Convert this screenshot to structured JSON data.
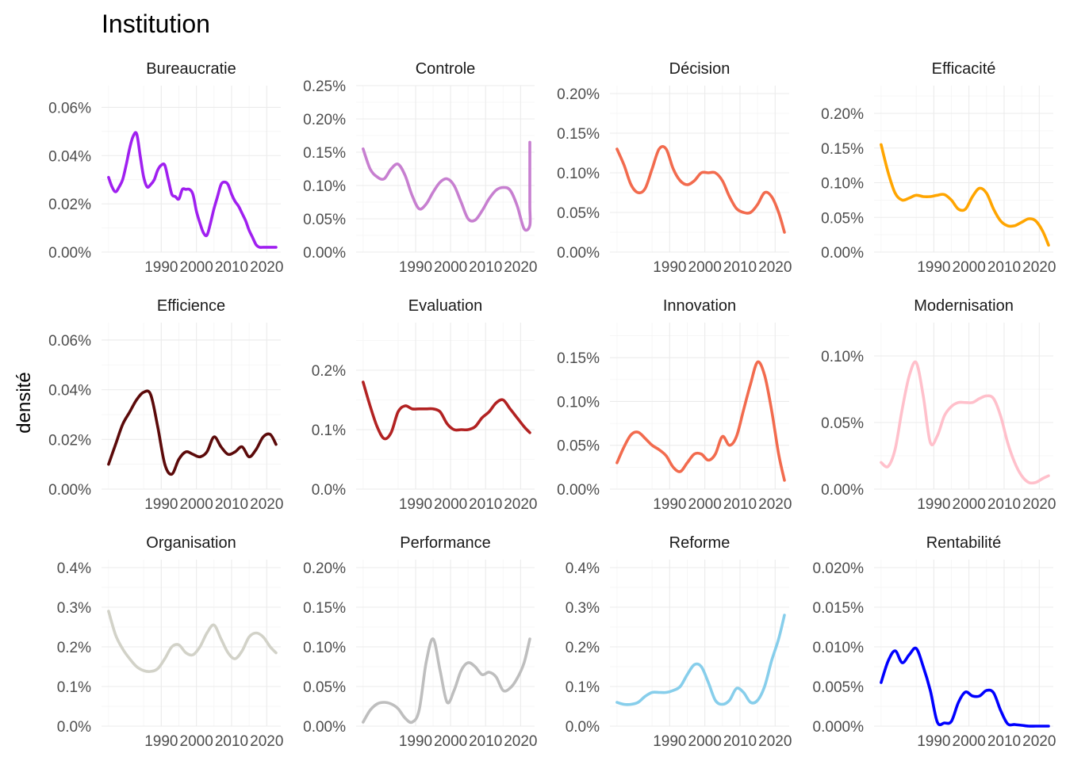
{
  "chart_data": {
    "type": "line",
    "title": "Institution",
    "ylabel": "densité",
    "xlabel": "",
    "x_range": [
      1973,
      2024
    ],
    "x_ticks": [
      1990,
      2000,
      2010,
      2020
    ],
    "grid": true,
    "legend": "none",
    "panels": [
      {
        "name": "Bureaucratie",
        "color": "#A020F0",
        "ylim": [
          0,
          0.069
        ],
        "yticks": [
          0,
          0.02,
          0.04,
          0.06
        ],
        "yticklabels": [
          "0.00%",
          "0.02%",
          "0.04%",
          "0.06%"
        ],
        "x": [
          1975,
          1976,
          1977,
          1978,
          1979,
          1980,
          1981,
          1982,
          1983,
          1984,
          1985,
          1986,
          1987,
          1988,
          1989,
          1990,
          1991,
          1992,
          1993,
          1994,
          1995,
          1996,
          1997,
          1998,
          1999,
          2000,
          2001,
          2002,
          2003,
          2004,
          2005,
          2006,
          2007,
          2008,
          2009,
          2010,
          2011,
          2012,
          2013,
          2014,
          2015,
          2016,
          2017,
          2018,
          2019,
          2020,
          2021,
          2022,
          2023
        ],
        "y": [
          0.031,
          0.027,
          0.025,
          0.027,
          0.03,
          0.036,
          0.043,
          0.048,
          0.049,
          0.04,
          0.031,
          0.027,
          0.028,
          0.03,
          0.034,
          0.036,
          0.036,
          0.03,
          0.024,
          0.023,
          0.022,
          0.026,
          0.026,
          0.026,
          0.024,
          0.017,
          0.012,
          0.008,
          0.007,
          0.012,
          0.018,
          0.023,
          0.028,
          0.029,
          0.028,
          0.024,
          0.021,
          0.019,
          0.016,
          0.013,
          0.009,
          0.006,
          0.003,
          0.002,
          0.002,
          0.002,
          0.002,
          0.002,
          0.002
        ]
      },
      {
        "name": "Controle",
        "color": "#C77FD0",
        "ylim": [
          0,
          0.0025
        ],
        "yticks": [
          0,
          0.0005,
          0.001,
          0.0015,
          0.002,
          0.0025
        ],
        "yticklabels": [
          "0.00%",
          "0.05%",
          "0.10%",
          "0.15%",
          "0.20%",
          "0.25%"
        ],
        "x": [
          1975,
          1977,
          1979,
          1981,
          1983,
          1985,
          1987,
          1989,
          1991,
          1993,
          1995,
          1997,
          1999,
          2001,
          2003,
          2005,
          2007,
          2009,
          2011,
          2013,
          2015,
          2017,
          2019,
          2021,
          2023
        ],
        "y": [
          0.00155,
          0.00125,
          0.00113,
          0.0011,
          0.00125,
          0.00132,
          0.00115,
          0.00085,
          0.00065,
          0.00072,
          0.0009,
          0.00105,
          0.0011,
          0.001,
          0.00075,
          0.0005,
          0.00048,
          0.00062,
          0.0008,
          0.00093,
          0.00097,
          0.00093,
          0.0007,
          0.00035,
          0.0004
        ],
        "x2": [
          2024,
          2025,
          2026
        ],
        "y2": [
          0.0007,
          0.0012,
          0.00165
        ]
      },
      {
        "name": "Décision",
        "color": "#F26B4E",
        "ylim": [
          0,
          0.0021
        ],
        "yticks": [
          0,
          0.0005,
          0.001,
          0.0015,
          0.002
        ],
        "yticklabels": [
          "0.00%",
          "0.05%",
          "0.10%",
          "0.15%",
          "0.20%"
        ],
        "x": [
          1975,
          1977,
          1979,
          1981,
          1983,
          1985,
          1987,
          1989,
          1991,
          1993,
          1995,
          1997,
          1999,
          2001,
          2003,
          2005,
          2007,
          2009,
          2011,
          2013,
          2015,
          2017,
          2019,
          2021,
          2023
        ],
        "y": [
          0.0013,
          0.0011,
          0.00085,
          0.00075,
          0.0008,
          0.00105,
          0.0013,
          0.0013,
          0.00105,
          0.0009,
          0.00085,
          0.0009,
          0.001,
          0.001,
          0.001,
          0.0009,
          0.0007,
          0.00055,
          0.0005,
          0.0005,
          0.0006,
          0.00075,
          0.0007,
          0.0005,
          0.00025
        ]
      },
      {
        "name": "Efficacité",
        "color": "#FFA500",
        "ylim": [
          0,
          0.0024
        ],
        "yticks": [
          0,
          0.0005,
          0.001,
          0.0015,
          0.002
        ],
        "yticklabels": [
          "0.00%",
          "0.05%",
          "0.10%",
          "0.15%",
          "0.20%"
        ],
        "x": [
          1975,
          1977,
          1979,
          1981,
          1983,
          1985,
          1987,
          1989,
          1991,
          1993,
          1995,
          1997,
          1999,
          2001,
          2003,
          2005,
          2007,
          2009,
          2011,
          2013,
          2015,
          2017,
          2019,
          2021,
          2023
        ],
        "y": [
          0.00155,
          0.00115,
          0.00085,
          0.00075,
          0.00078,
          0.00082,
          0.0008,
          0.0008,
          0.00082,
          0.00083,
          0.00075,
          0.00062,
          0.00062,
          0.0008,
          0.00092,
          0.00085,
          0.00062,
          0.00045,
          0.00038,
          0.00038,
          0.00043,
          0.00048,
          0.00045,
          0.0003,
          0.0001
        ]
      },
      {
        "name": "Efficience",
        "color": "#5C0A0A",
        "ylim": [
          0,
          0.067
        ],
        "yticks": [
          0,
          0.02,
          0.04,
          0.06
        ],
        "yticklabels": [
          "0.00%",
          "0.02%",
          "0.04%",
          "0.06%"
        ],
        "x": [
          1975,
          1977,
          1979,
          1981,
          1983,
          1985,
          1987,
          1989,
          1991,
          1993,
          1995,
          1997,
          1999,
          2001,
          2003,
          2005,
          2007,
          2009,
          2011,
          2013,
          2015,
          2017,
          2019,
          2021,
          2023
        ],
        "y": [
          0.01,
          0.018,
          0.026,
          0.031,
          0.036,
          0.039,
          0.038,
          0.025,
          0.01,
          0.006,
          0.012,
          0.015,
          0.014,
          0.013,
          0.015,
          0.021,
          0.017,
          0.014,
          0.015,
          0.017,
          0.013,
          0.016,
          0.021,
          0.022,
          0.018
        ]
      },
      {
        "name": "Evaluation",
        "color": "#B22222",
        "ylim": [
          0,
          0.0028
        ],
        "yticks": [
          0,
          0.001,
          0.002
        ],
        "yticklabels": [
          "0.0%",
          "0.1%",
          "0.2%"
        ],
        "x": [
          1975,
          1977,
          1979,
          1981,
          1983,
          1985,
          1987,
          1989,
          1991,
          1993,
          1995,
          1997,
          1999,
          2001,
          2003,
          2005,
          2007,
          2009,
          2011,
          2013,
          2015,
          2017,
          2019,
          2021,
          2023
        ],
        "y": [
          0.0018,
          0.0014,
          0.00105,
          0.00085,
          0.00095,
          0.0013,
          0.0014,
          0.00135,
          0.00135,
          0.00135,
          0.00135,
          0.0013,
          0.0011,
          0.001,
          0.001,
          0.001,
          0.00105,
          0.0012,
          0.0013,
          0.00145,
          0.0015,
          0.00135,
          0.0012,
          0.00105,
          0.00095
        ]
      },
      {
        "name": "Innovation",
        "color": "#F26B4E",
        "ylim": [
          0,
          0.0019
        ],
        "yticks": [
          0,
          0.0005,
          0.001,
          0.0015
        ],
        "yticklabels": [
          "0.00%",
          "0.05%",
          "0.10%",
          "0.15%"
        ],
        "x": [
          1975,
          1977,
          1979,
          1981,
          1983,
          1985,
          1987,
          1989,
          1991,
          1993,
          1995,
          1997,
          1999,
          2001,
          2003,
          2005,
          2007,
          2009,
          2011,
          2013,
          2015,
          2017,
          2019,
          2021,
          2023
        ],
        "y": [
          0.0003,
          0.00048,
          0.00062,
          0.00065,
          0.00058,
          0.0005,
          0.00045,
          0.00038,
          0.00025,
          0.0002,
          0.0003,
          0.0004,
          0.0004,
          0.00033,
          0.0004,
          0.0006,
          0.0005,
          0.0006,
          0.0009,
          0.0012,
          0.00145,
          0.0013,
          0.0009,
          0.0004,
          0.0001
        ]
      },
      {
        "name": "Modernisation",
        "color": "#FFC0CB",
        "ylim": [
          0,
          0.00125
        ],
        "yticks": [
          0,
          0.0005,
          0.001
        ],
        "yticklabels": [
          "0.00%",
          "0.05%",
          "0.10%"
        ],
        "x": [
          1975,
          1977,
          1979,
          1981,
          1983,
          1985,
          1987,
          1989,
          1991,
          1993,
          1995,
          1997,
          1999,
          2001,
          2003,
          2005,
          2007,
          2009,
          2011,
          2013,
          2015,
          2017,
          2019,
          2021,
          2023
        ],
        "y": [
          0.0002,
          0.00017,
          0.0003,
          0.0006,
          0.00085,
          0.00095,
          0.0007,
          0.00035,
          0.0004,
          0.00055,
          0.00062,
          0.00065,
          0.00065,
          0.00065,
          0.00068,
          0.0007,
          0.00068,
          0.00055,
          0.00035,
          0.0002,
          0.0001,
          5e-05,
          5e-05,
          8e-05,
          0.0001
        ]
      },
      {
        "name": "Organisation",
        "color": "#D2D2C8",
        "ylim": [
          0,
          0.0042
        ],
        "yticks": [
          0,
          0.001,
          0.002,
          0.003,
          0.004
        ],
        "yticklabels": [
          "0.0%",
          "0.1%",
          "0.2%",
          "0.3%",
          "0.4%"
        ],
        "x": [
          1975,
          1977,
          1979,
          1981,
          1983,
          1985,
          1987,
          1989,
          1991,
          1993,
          1995,
          1997,
          1999,
          2001,
          2003,
          2005,
          2007,
          2009,
          2011,
          2013,
          2015,
          2017,
          2019,
          2021,
          2023
        ],
        "y": [
          0.0029,
          0.0023,
          0.00195,
          0.0017,
          0.0015,
          0.0014,
          0.00138,
          0.00145,
          0.0017,
          0.002,
          0.00205,
          0.00185,
          0.0018,
          0.002,
          0.00235,
          0.00255,
          0.0022,
          0.00185,
          0.0017,
          0.0019,
          0.00225,
          0.00235,
          0.00225,
          0.002,
          0.00185
        ]
      },
      {
        "name": "Performance",
        "color": "#BEBEBE",
        "ylim": [
          0,
          0.0021
        ],
        "yticks": [
          0,
          0.0005,
          0.001,
          0.0015,
          0.002
        ],
        "yticklabels": [
          "0.00%",
          "0.05%",
          "0.10%",
          "0.15%",
          "0.20%"
        ],
        "x": [
          1975,
          1977,
          1979,
          1981,
          1983,
          1985,
          1987,
          1989,
          1991,
          1993,
          1995,
          1997,
          1999,
          2001,
          2003,
          2005,
          2007,
          2009,
          2011,
          2013,
          2015,
          2017,
          2019,
          2021,
          2023
        ],
        "y": [
          5e-05,
          0.0002,
          0.00028,
          0.0003,
          0.00028,
          0.00022,
          0.0001,
          5e-05,
          0.0002,
          0.0008,
          0.0011,
          0.0007,
          0.0003,
          0.00045,
          0.0007,
          0.0008,
          0.00075,
          0.00065,
          0.00068,
          0.00062,
          0.00045,
          0.00048,
          0.0006,
          0.0008,
          0.0011
        ]
      },
      {
        "name": "Reforme",
        "color": "#87CEEB",
        "ylim": [
          0,
          0.0042
        ],
        "yticks": [
          0,
          0.001,
          0.002,
          0.003,
          0.004
        ],
        "yticklabels": [
          "0.0%",
          "0.1%",
          "0.2%",
          "0.3%",
          "0.4%"
        ],
        "x": [
          1975,
          1977,
          1979,
          1981,
          1983,
          1985,
          1987,
          1989,
          1991,
          1993,
          1995,
          1997,
          1999,
          2001,
          2003,
          2005,
          2007,
          2009,
          2011,
          2013,
          2015,
          2017,
          2019,
          2021,
          2023
        ],
        "y": [
          0.0006,
          0.00055,
          0.00055,
          0.0006,
          0.00075,
          0.00085,
          0.00085,
          0.00085,
          0.0009,
          0.001,
          0.0013,
          0.00155,
          0.0015,
          0.0011,
          0.00065,
          0.00055,
          0.00065,
          0.00095,
          0.00085,
          0.0006,
          0.00065,
          0.001,
          0.00165,
          0.0022,
          0.0028
        ]
      },
      {
        "name": "Rentabilité",
        "color": "#0000FF",
        "ylim": [
          0,
          0.00021
        ],
        "yticks": [
          0,
          5e-05,
          0.0001,
          0.00015,
          0.0002
        ],
        "yticklabels": [
          "0.000%",
          "0.005%",
          "0.010%",
          "0.015%",
          "0.020%"
        ],
        "x": [
          1975,
          1977,
          1979,
          1981,
          1983,
          1985,
          1987,
          1989,
          1991,
          1993,
          1995,
          1997,
          1999,
          2001,
          2003,
          2005,
          2007,
          2009,
          2011,
          2013,
          2015,
          2017,
          2019,
          2021,
          2023
        ],
        "y": [
          5.5e-05,
          8.2e-05,
          9.5e-05,
          8e-05,
          9e-05,
          9.8e-05,
          7.5e-05,
          4.5e-05,
          5e-06,
          4e-06,
          6e-06,
          3e-05,
          4.3e-05,
          3.8e-05,
          3.8e-05,
          4.5e-05,
          4.2e-05,
          2e-05,
          3e-06,
          2e-06,
          1e-06,
          0.0,
          0.0,
          0.0,
          0.0
        ]
      }
    ]
  }
}
